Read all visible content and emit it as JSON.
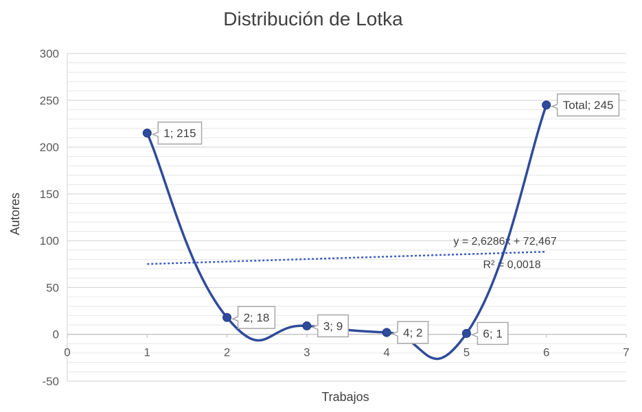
{
  "chart_data": {
    "type": "scatter",
    "title": "Distribución de Lotka",
    "xlabel": "Trabajos",
    "ylabel": "Autores",
    "xlim": [
      0,
      7
    ],
    "ylim": [
      -50,
      300
    ],
    "x_ticks": [
      "0",
      "1",
      "2",
      "3",
      "4",
      "5",
      "6",
      "7"
    ],
    "y_ticks": [
      "-50",
      "0",
      "50",
      "100",
      "150",
      "200",
      "250",
      "300"
    ],
    "grid": true,
    "legend": "none",
    "colors": {
      "series": "#2F4B9B",
      "trend": "#3A5BC7",
      "grid": "#D9D9D9"
    },
    "series": [
      {
        "smooth": true,
        "points": [
          {
            "x": 1,
            "y": 215,
            "label": "1; 215"
          },
          {
            "x": 2,
            "y": 18,
            "label": "2; 18"
          },
          {
            "x": 3,
            "y": 9,
            "label": "3; 9"
          },
          {
            "x": 4,
            "y": 2,
            "label": "4; 2"
          },
          {
            "x": 5,
            "y": 1,
            "label": "6; 1"
          },
          {
            "x": 6,
            "y": 245,
            "label": "Total; 245"
          }
        ]
      }
    ],
    "trendline": {
      "type": "linear",
      "slope": 2.6286,
      "intercept": 72.467,
      "x_range": [
        1,
        6
      ],
      "equation": "y = 2,6286x + 72,467",
      "r2": "R² = 0,0018"
    }
  }
}
